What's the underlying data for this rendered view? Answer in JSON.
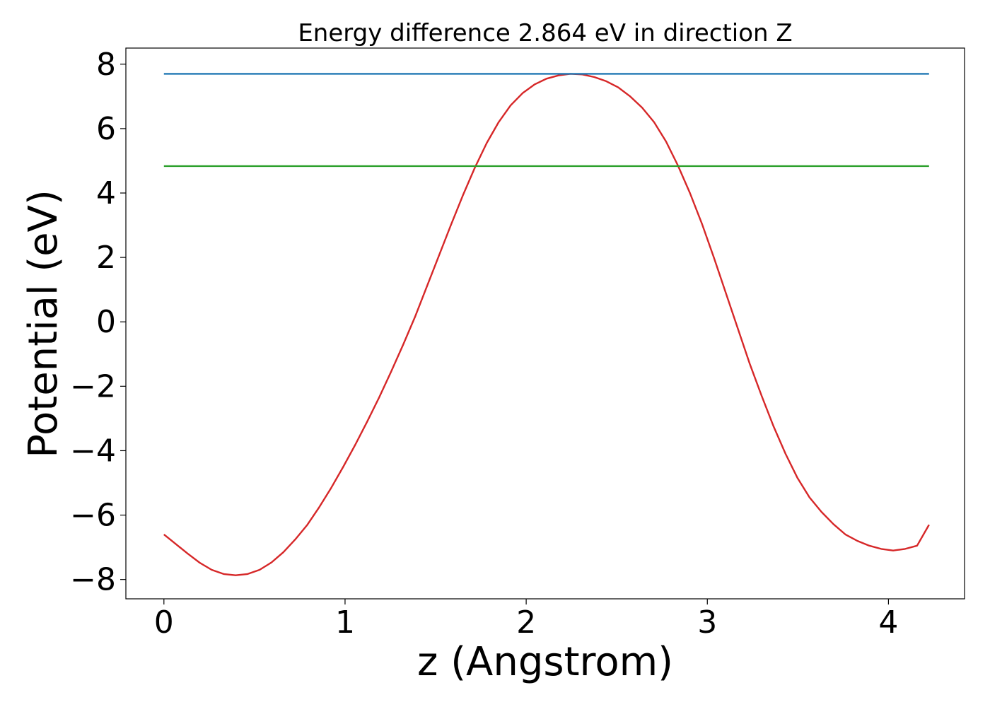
{
  "chart_data": {
    "type": "line",
    "title": "Energy difference 2.864 eV in direction Z",
    "xlabel": "z (Angstrom)",
    "ylabel": "Potential (eV)",
    "xlim": [
      -0.21,
      4.42
    ],
    "ylim": [
      -8.6,
      8.5
    ],
    "xticks": [
      0,
      1,
      2,
      3,
      4
    ],
    "xtick_labels": [
      "0",
      "1",
      "2",
      "3",
      "4"
    ],
    "yticks": [
      -8,
      -6,
      -4,
      -2,
      0,
      2,
      4,
      6,
      8
    ],
    "ytick_labels": [
      "−8",
      "−6",
      "−4",
      "−2",
      "0",
      "2",
      "4",
      "6",
      "8"
    ],
    "grid": false,
    "legend": "none",
    "series": [
      {
        "color": "#d62728",
        "x": [
          0,
          0.066,
          0.132,
          0.198,
          0.264,
          0.33,
          0.396,
          0.462,
          0.528,
          0.594,
          0.66,
          0.726,
          0.792,
          0.858,
          0.924,
          0.99,
          1.056,
          1.122,
          1.188,
          1.254,
          1.32,
          1.386,
          1.452,
          1.518,
          1.584,
          1.65,
          1.716,
          1.782,
          1.848,
          1.914,
          1.98,
          2.046,
          2.112,
          2.178,
          2.244,
          2.31,
          2.376,
          2.442,
          2.508,
          2.574,
          2.64,
          2.706,
          2.772,
          2.838,
          2.904,
          2.97,
          3.036,
          3.102,
          3.168,
          3.234,
          3.3,
          3.366,
          3.432,
          3.498,
          3.564,
          3.63,
          3.696,
          3.762,
          3.828,
          3.894,
          3.96,
          4.026,
          4.092,
          4.158,
          4.224
        ],
        "y": [
          -6.6,
          -6.9,
          -7.2,
          -7.48,
          -7.7,
          -7.83,
          -7.87,
          -7.83,
          -7.7,
          -7.47,
          -7.15,
          -6.75,
          -6.3,
          -5.75,
          -5.15,
          -4.5,
          -3.82,
          -3.1,
          -2.35,
          -1.55,
          -0.72,
          0.15,
          1.1,
          2.05,
          3.0,
          3.92,
          4.78,
          5.55,
          6.2,
          6.72,
          7.1,
          7.37,
          7.55,
          7.65,
          7.7,
          7.68,
          7.6,
          7.47,
          7.28,
          7.0,
          6.65,
          6.2,
          5.6,
          4.85,
          4.0,
          3.05,
          2.0,
          0.9,
          -0.2,
          -1.3,
          -2.3,
          -3.25,
          -4.1,
          -4.85,
          -5.45,
          -5.9,
          -6.28,
          -6.6,
          -6.8,
          -6.95,
          -7.05,
          -7.1,
          -7.05,
          -6.95,
          -6.3
        ]
      },
      {
        "color": "#1f77b4",
        "x": [
          0,
          4.224
        ],
        "y": [
          7.7,
          7.7
        ]
      },
      {
        "color": "#2ca02c",
        "x": [
          0,
          4.224
        ],
        "y": [
          4.836,
          4.836
        ]
      }
    ],
    "colors": {
      "frame": "#000000",
      "background": "#ffffff"
    }
  }
}
